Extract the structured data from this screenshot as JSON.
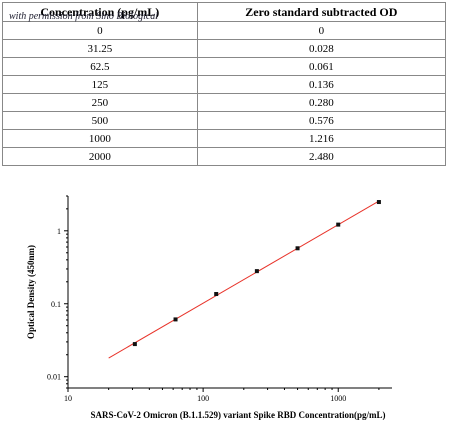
{
  "table": {
    "headers": [
      "Concentration (pg/mL)",
      "Zero standard subtracted OD"
    ],
    "watermark": "with permission from Sino Biological",
    "rows": [
      [
        "0",
        "0"
      ],
      [
        "31.25",
        "0.028"
      ],
      [
        "62.5",
        "0.061"
      ],
      [
        "125",
        "0.136"
      ],
      [
        "250",
        "0.280"
      ],
      [
        "500",
        "0.576"
      ],
      [
        "1000",
        "1.216"
      ],
      [
        "2000",
        "2.480"
      ]
    ]
  },
  "chart_data": {
    "type": "scatter",
    "x_scale": "log",
    "y_scale": "log",
    "xlabel": "SARS-CoV-2 Omicron (B.1.1.529) variant Spike RBD  Concentration(pg/mL)",
    "ylabel": "Optical Density (450nm)",
    "xlim": [
      10,
      2500
    ],
    "ylim": [
      0.007,
      3
    ],
    "x_ticks": [
      10,
      100,
      1000
    ],
    "x_tick_labels": [
      "10",
      "100",
      "1000"
    ],
    "y_ticks": [
      0.01,
      0.1,
      1
    ],
    "y_tick_labels": [
      "0.01",
      "0.1",
      "1"
    ],
    "points": [
      {
        "x": 31.25,
        "y": 0.028
      },
      {
        "x": 62.5,
        "y": 0.061
      },
      {
        "x": 125,
        "y": 0.136
      },
      {
        "x": 250,
        "y": 0.28
      },
      {
        "x": 500,
        "y": 0.576
      },
      {
        "x": 1000,
        "y": 1.216
      },
      {
        "x": 2000,
        "y": 2.48
      }
    ],
    "fit_line": {
      "x_start": 20,
      "x_end": 2000,
      "color": "#e8332a"
    },
    "marker_color": "#111111",
    "grid": false
  }
}
